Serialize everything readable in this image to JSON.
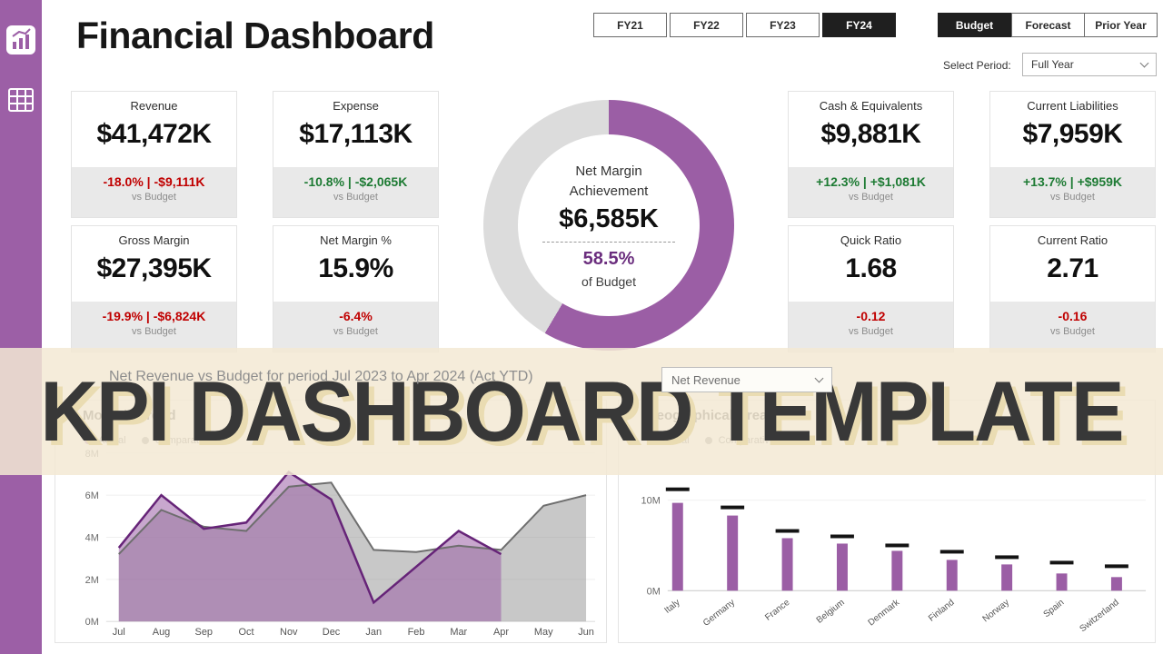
{
  "header": {
    "title": "Financial Dashboard"
  },
  "fy_tabs": [
    {
      "label": "FY21",
      "active": false
    },
    {
      "label": "FY22",
      "active": false
    },
    {
      "label": "FY23",
      "active": false
    },
    {
      "label": "FY24",
      "active": true
    }
  ],
  "scenario_tabs": [
    {
      "label": "Budget",
      "active": true
    },
    {
      "label": "Forecast",
      "active": false
    },
    {
      "label": "Prior Year",
      "active": false
    }
  ],
  "period": {
    "label": "Select Period:",
    "value": "Full Year"
  },
  "kpi_cards": [
    {
      "title": "Revenue",
      "value": "$41,472K",
      "delta": "-18.0% | -$9,111K",
      "delta_color": "red",
      "sub": "vs Budget"
    },
    {
      "title": "Expense",
      "value": "$17,113K",
      "delta": "-10.8% | -$2,065K",
      "delta_color": "green",
      "sub": "vs Budget"
    },
    {
      "title": "Cash & Equivalents",
      "value": "$9,881K",
      "delta": "+12.3% | +$1,081K",
      "delta_color": "green",
      "sub": "vs Budget"
    },
    {
      "title": "Current Liabilities",
      "value": "$7,959K",
      "delta": "+13.7% | +$959K",
      "delta_color": "green",
      "sub": "vs Budget"
    },
    {
      "title": "Gross Margin",
      "value": "$27,395K",
      "delta": "-19.9% | -$6,824K",
      "delta_color": "red",
      "sub": "vs Budget"
    },
    {
      "title": "Net Margin %",
      "value": "15.9%",
      "delta": "-6.4%",
      "delta_color": "red",
      "sub": "vs Budget"
    },
    {
      "title": "Quick Ratio",
      "value": "1.68",
      "delta": "-0.12",
      "delta_color": "red",
      "sub": "vs Budget"
    },
    {
      "title": "Current Ratio",
      "value": "2.71",
      "delta": "-0.16",
      "delta_color": "red",
      "sub": "vs Budget"
    }
  ],
  "donut": {
    "label_line1": "Net Margin",
    "label_line2": "Achievement",
    "value": "$6,585K",
    "percent_label": "58.5%",
    "sub": "of Budget",
    "percent": 58.5
  },
  "mid": {
    "chart_title": "Net Revenue vs Budget for period Jul 2023 to Apr 2024 (Act YTD)",
    "dropdown_value": "Net Revenue"
  },
  "overlay": {
    "text": "KPI DASHBOARD TEMPLATE"
  },
  "charts": {
    "trend": {
      "title": "Monthly Trend",
      "legend": [
        "Actual",
        "Comparative"
      ]
    },
    "geo": {
      "title": "Geographical Breakdown",
      "legend": [
        "Actual",
        "Comparative"
      ]
    }
  },
  "chart_data": [
    {
      "type": "area",
      "title": "Monthly Trend",
      "x": [
        "Jul",
        "Aug",
        "Sep",
        "Oct",
        "Nov",
        "Dec",
        "Jan",
        "Feb",
        "Mar",
        "Apr",
        "May",
        "Jun"
      ],
      "series": [
        {
          "name": "Actual",
          "stroke": "#662478",
          "fill": "rgba(154,95,166,0.55)",
          "values": [
            3.5,
            6.0,
            4.4,
            4.7,
            7.1,
            5.8,
            0.9,
            2.6,
            4.3,
            3.2,
            null,
            null
          ]
        },
        {
          "name": "Comparative",
          "stroke": "#6e6e6e",
          "fill": "rgba(145,145,145,0.5)",
          "values": [
            3.2,
            5.3,
            4.5,
            4.3,
            6.4,
            6.6,
            3.4,
            3.3,
            3.6,
            3.4,
            5.5,
            6.0
          ]
        }
      ],
      "ylim": [
        0,
        8
      ],
      "yticks": [
        "0M",
        "2M",
        "4M",
        "6M",
        "8M"
      ],
      "legend_position": "top-left"
    },
    {
      "type": "bar",
      "title": "Geographical Breakdown",
      "categories": [
        "Italy",
        "Germany",
        "France",
        "Belgium",
        "Denmark",
        "Finland",
        "Norway",
        "Spain",
        "Switzerland"
      ],
      "series": [
        {
          "name": "Actual",
          "values": [
            9.7,
            8.3,
            5.8,
            5.2,
            4.4,
            3.4,
            2.9,
            1.9,
            1.5
          ]
        },
        {
          "name": "Comparative",
          "values": [
            11.2,
            9.2,
            6.6,
            6.0,
            5.0,
            4.3,
            3.7,
            3.1,
            2.7
          ]
        }
      ],
      "ylim": [
        0,
        12
      ],
      "yticks": [
        "0M",
        "10M"
      ],
      "ytick_values": [
        0,
        10
      ],
      "legend_position": "top-left"
    }
  ],
  "colors": {
    "accent": "#9B5EA5",
    "red": "#C00000",
    "green": "#1E7B34",
    "dark": "#1F1F1F",
    "donut_rest": "#DCDCDC"
  }
}
